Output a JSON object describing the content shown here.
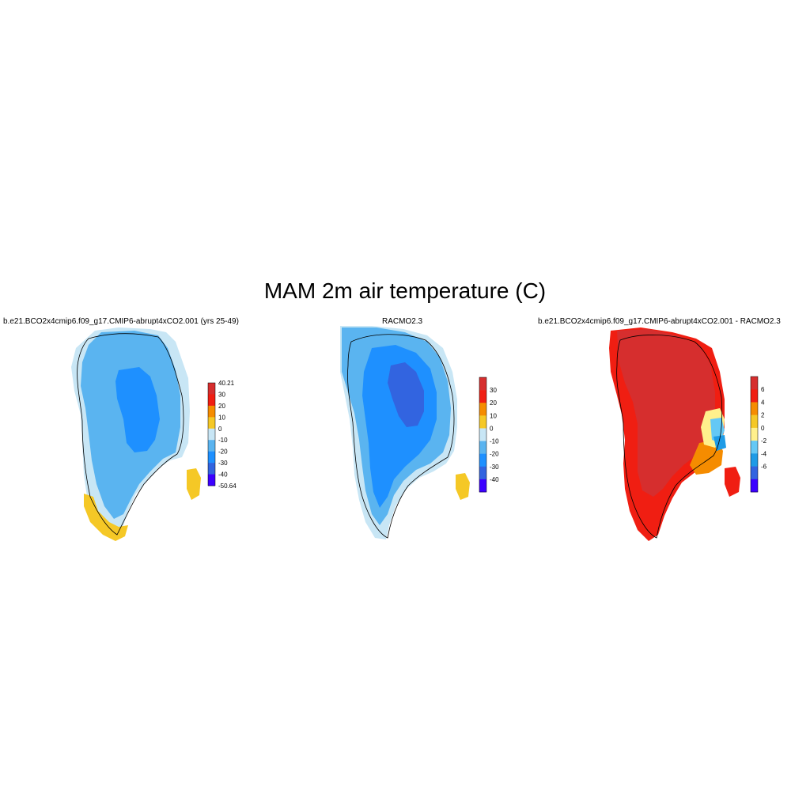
{
  "title": "MAM 2m air temperature (C)",
  "panels": [
    {
      "title": "b.e21.BCO2x4cmip6.f09_g17.CMIP6-abrupt4xCO2.001 (yrs 25-49)",
      "colorbar": {
        "labels": [
          "40.21",
          "30",
          "20",
          "10",
          "0",
          "-10",
          "-20",
          "-30",
          "-40",
          "-50.64"
        ],
        "colors": [
          "#d62e2e",
          "#f01e12",
          "#f58c00",
          "#f5c826",
          "#c8e6f5",
          "#5ab4f0",
          "#1e90ff",
          "#3264e0",
          "#3c00ff"
        ]
      }
    },
    {
      "title": "RACMO2.3",
      "colorbar": {
        "labels": [
          "30",
          "20",
          "10",
          "0",
          "-10",
          "-20",
          "-30",
          "-40"
        ],
        "colors": [
          "#d62e2e",
          "#f01e12",
          "#f58c00",
          "#f5c826",
          "#c8e6f5",
          "#5ab4f0",
          "#1e90ff",
          "#3264e0",
          "#3c00ff"
        ]
      }
    },
    {
      "title": "b.e21.BCO2x4cmip6.f09_g17.CMIP6-abrupt4xCO2.001 - RACMO2.3",
      "colorbar": {
        "labels": [
          "6",
          "4",
          "2",
          "0",
          "-2",
          "-4",
          "-6"
        ],
        "colors": [
          "#d62e2e",
          "#f01e12",
          "#f58c00",
          "#f5c826",
          "#fff08c",
          "#64c8f5",
          "#1e9be6",
          "#3264e0",
          "#3c00ff"
        ]
      }
    }
  ]
}
